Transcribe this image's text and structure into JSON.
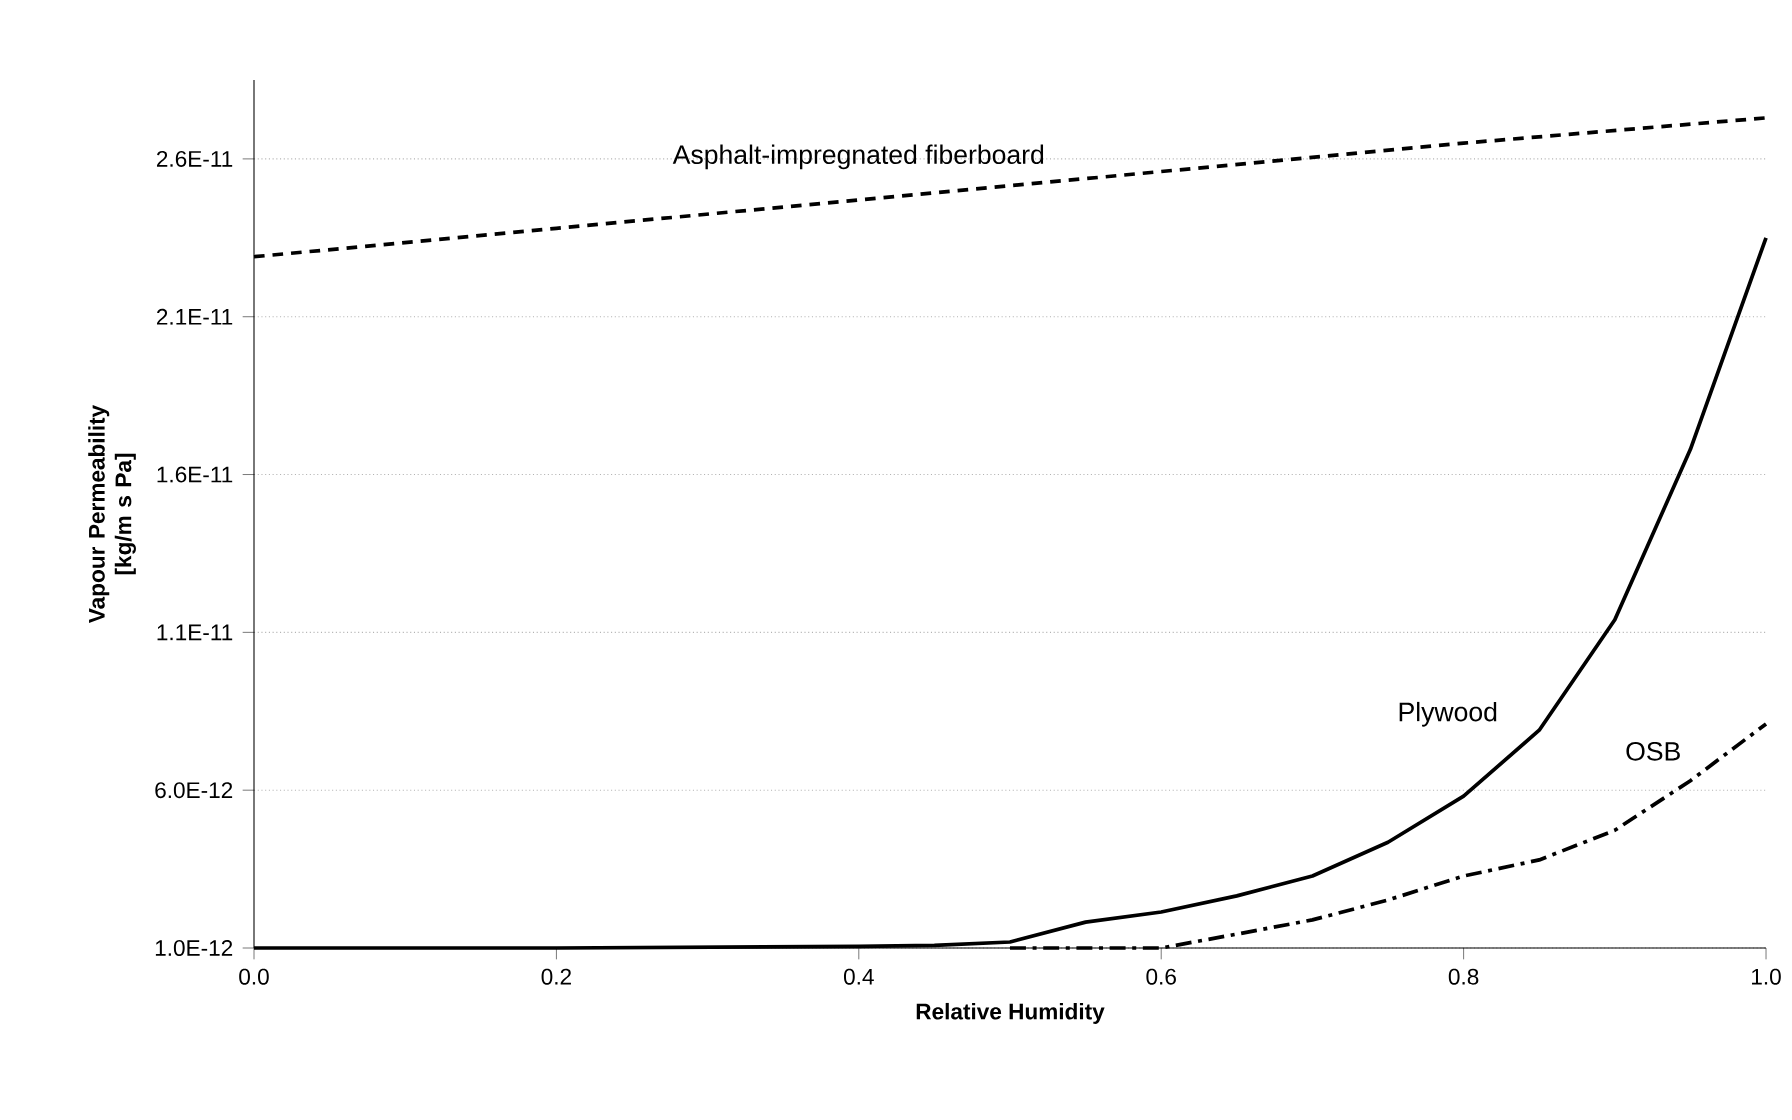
{
  "chart_data": {
    "type": "line",
    "xlabel": "Relative Humidity",
    "ylabel": "Vapour Permeability [kg/m s Pa]",
    "xlim": [
      0,
      1
    ],
    "xticks": [
      {
        "value": 0,
        "label": "0.0"
      },
      {
        "value": 0.2,
        "label": "0.2"
      },
      {
        "value": 0.4,
        "label": "0.4"
      },
      {
        "value": 0.6,
        "label": "0.6"
      },
      {
        "value": 0.8,
        "label": "0.8"
      },
      {
        "value": 1,
        "label": "1.0"
      }
    ],
    "ylim": [
      1e-12,
      2.85e-11
    ],
    "yticks": [
      {
        "value": 1e-12,
        "label": "1.0E-12"
      },
      {
        "value": 6e-12,
        "label": "6.0E-12"
      },
      {
        "value": 1.1e-11,
        "label": "1.1E-11"
      },
      {
        "value": 1.6e-11,
        "label": "1.6E-11"
      },
      {
        "value": 2.1e-11,
        "label": "2.1E-11"
      },
      {
        "value": 2.6e-11,
        "label": "2.6E-11"
      }
    ],
    "grid": "y",
    "series": [
      {
        "name": "Asphalt-impregnated fiberboard",
        "color": "#000000",
        "line_style": "dashed",
        "x": [
          0,
          0.2,
          0.4,
          0.6,
          0.8,
          1.0
        ],
        "values": [
          2.29e-11,
          2.38e-11,
          2.47e-11,
          2.56e-11,
          2.65e-11,
          2.73e-11
        ]
      },
      {
        "name": "Plywood",
        "color": "#000000",
        "line_style": "solid",
        "x": [
          0,
          0.2,
          0.4,
          0.45,
          0.5,
          0.55,
          0.6,
          0.65,
          0.7,
          0.75,
          0.8,
          0.85,
          0.9,
          0.95,
          1.0
        ],
        "values": [
          1e-12,
          1e-12,
          1.05e-12,
          1.08e-12,
          1.19e-12,
          1.82e-12,
          2.14e-12,
          2.65e-12,
          3.28e-12,
          4.35e-12,
          5.81e-12,
          7.9e-12,
          1.14e-11,
          1.68e-11,
          2.35e-11
        ]
      },
      {
        "name": "OSB",
        "color": "#000000",
        "line_style": "dashdot",
        "x": [
          0.5,
          0.6,
          0.65,
          0.7,
          0.75,
          0.8,
          0.85,
          0.9,
          0.95,
          1.0
        ],
        "values": [
          1e-12,
          1e-12,
          1.44e-12,
          1.89e-12,
          2.52e-12,
          3.28e-12,
          3.79e-12,
          4.73e-12,
          6.3e-12,
          8.1e-12
        ]
      }
    ]
  }
}
